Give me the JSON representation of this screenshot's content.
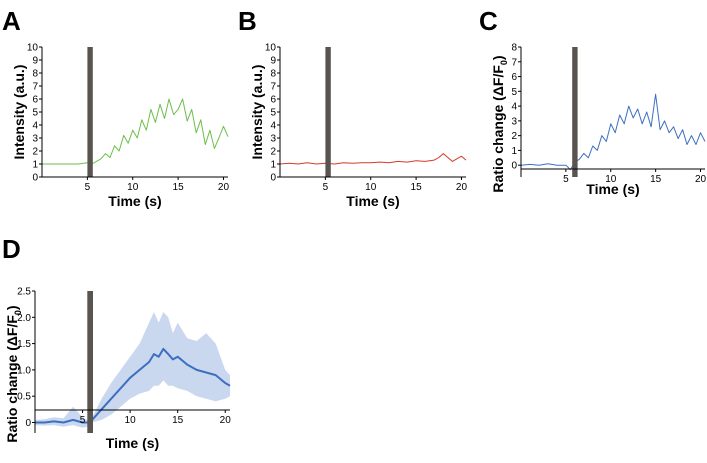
{
  "chart_data": [
    {
      "panel": "A",
      "type": "line",
      "xlabel": "Time (s)",
      "ylabel": "Intensity (a.u.)",
      "xlim": [
        0,
        20.5
      ],
      "ylim": [
        0,
        10
      ],
      "xticks": [
        5,
        10,
        15,
        20
      ],
      "yticks": [
        0,
        1,
        2,
        3,
        4,
        5,
        6,
        7,
        8,
        9,
        10
      ],
      "stimulus": [
        5,
        5.6
      ],
      "colors": {
        "line": "#6cbf4a",
        "stimulus": "#5a5450"
      },
      "series": [
        {
          "name": "trace",
          "x": [
            0,
            1,
            2,
            3,
            4,
            5,
            5.5,
            6,
            6.5,
            7,
            7.5,
            8,
            8.5,
            9,
            9.5,
            10,
            10.5,
            11,
            11.5,
            12,
            12.5,
            13,
            13.5,
            14,
            14.5,
            15,
            15.5,
            16,
            16.5,
            17,
            17.5,
            18,
            18.5,
            19,
            19.5,
            20,
            20.5
          ],
          "values": [
            1.0,
            1.0,
            1.0,
            1.0,
            1.0,
            1.1,
            1.0,
            1.2,
            1.4,
            1.8,
            1.5,
            2.4,
            2.0,
            3.2,
            2.6,
            3.6,
            3.0,
            4.4,
            3.6,
            5.2,
            4.2,
            5.6,
            4.5,
            6.0,
            4.8,
            5.2,
            6.0,
            4.3,
            5.2,
            3.4,
            4.4,
            2.5,
            3.6,
            2.2,
            3.0,
            3.9,
            3.1
          ]
        }
      ]
    },
    {
      "panel": "B",
      "type": "line",
      "xlabel": "Time (s)",
      "ylabel": "Intensity (a.u.)",
      "xlim": [
        0,
        20.5
      ],
      "ylim": [
        0,
        10
      ],
      "xticks": [
        5,
        10,
        15,
        20
      ],
      "yticks": [
        0,
        1,
        2,
        3,
        4,
        5,
        6,
        7,
        8,
        9,
        10
      ],
      "stimulus": [
        5,
        5.6
      ],
      "colors": {
        "line": "#d23b2a",
        "stimulus": "#5a5450"
      },
      "series": [
        {
          "name": "trace",
          "x": [
            0,
            1,
            2,
            3,
            4,
            5,
            6,
            7,
            8,
            9,
            10,
            11,
            12,
            13,
            14,
            15,
            16,
            17,
            17.5,
            18,
            18.5,
            19,
            19.5,
            20,
            20.5
          ],
          "values": [
            1.0,
            1.05,
            1.0,
            1.1,
            1.0,
            1.05,
            1.0,
            1.1,
            1.05,
            1.1,
            1.1,
            1.15,
            1.1,
            1.2,
            1.15,
            1.25,
            1.2,
            1.3,
            1.5,
            1.8,
            1.5,
            1.2,
            1.4,
            1.6,
            1.3
          ]
        }
      ]
    },
    {
      "panel": "C",
      "type": "line",
      "xlabel": "Time (s)",
      "ylabel": "Ratio change (ΔF/F",
      "ylabel_sub": "0",
      "ylabel_end": ")",
      "xlim": [
        0,
        20.5
      ],
      "ylim": [
        -0.8,
        8
      ],
      "xticks": [
        5,
        10,
        15,
        20
      ],
      "yticks": [
        0,
        1,
        2,
        3,
        4,
        5,
        6,
        7,
        8
      ],
      "stimulus": [
        5.7,
        6.3
      ],
      "colors": {
        "line": "#3d6fc0",
        "stimulus": "#5a5450"
      },
      "series": [
        {
          "name": "trace",
          "x": [
            0,
            1,
            2,
            3,
            4,
            5,
            5.5,
            6,
            6.5,
            7,
            7.5,
            8,
            8.5,
            9,
            9.5,
            10,
            10.5,
            11,
            11.5,
            12,
            12.5,
            13,
            13.5,
            14,
            14.5,
            15,
            15.5,
            16,
            16.5,
            17,
            17.5,
            18,
            18.5,
            19,
            19.5,
            20,
            20.5
          ],
          "values": [
            0.0,
            0.05,
            0.0,
            0.1,
            0.0,
            0.0,
            -0.3,
            0.2,
            0.4,
            0.8,
            0.5,
            1.3,
            1.0,
            2.0,
            1.6,
            2.8,
            2.2,
            3.4,
            2.8,
            4.0,
            3.2,
            3.8,
            2.8,
            3.6,
            2.6,
            4.8,
            2.4,
            3.0,
            2.2,
            2.6,
            1.8,
            2.4,
            1.4,
            2.0,
            1.4,
            2.2,
            1.6
          ]
        }
      ]
    },
    {
      "panel": "D",
      "type": "line",
      "xlabel": "Time (s)",
      "ylabel": "Ratio change (ΔF/F",
      "ylabel_sub": "0",
      "ylabel_end": ")",
      "xlim": [
        0,
        20.5
      ],
      "ylim": [
        -0.2,
        2.5
      ],
      "xticks": [
        5,
        10,
        15,
        20
      ],
      "yticks": [
        0,
        0.5,
        1.0,
        1.5,
        2.0,
        2.5
      ],
      "ytick_labels": [
        "0",
        "0.5",
        "1.0",
        "1.5",
        "2.0",
        "2.5"
      ],
      "stimulus": [
        5.5,
        6.1
      ],
      "colors": {
        "line": "#3d6fc0",
        "band": "#9fb8e2",
        "stimulus": "#5a5450"
      },
      "series": [
        {
          "name": "mean",
          "x": [
            0,
            1,
            2,
            3,
            4,
            5,
            5.5,
            6,
            7,
            8,
            9,
            10,
            11,
            12,
            12.5,
            13,
            13.5,
            14,
            14.5,
            15,
            16,
            17,
            18,
            19,
            20,
            20.5
          ],
          "values": [
            0.0,
            0.0,
            0.02,
            0.0,
            0.05,
            0.0,
            0.0,
            0.05,
            0.25,
            0.45,
            0.65,
            0.85,
            1.0,
            1.15,
            1.3,
            1.25,
            1.4,
            1.3,
            1.2,
            1.25,
            1.1,
            1.0,
            0.95,
            0.9,
            0.75,
            0.7
          ]
        },
        {
          "name": "upper",
          "x": [
            0,
            1,
            2,
            3,
            4,
            5,
            5.5,
            6,
            7,
            8,
            9,
            10,
            11,
            12,
            12.5,
            13,
            13.5,
            14,
            14.5,
            15,
            16,
            17,
            18,
            19,
            20,
            20.5
          ],
          "values": [
            0.05,
            0.06,
            0.1,
            0.08,
            0.3,
            0.1,
            0.05,
            0.1,
            0.45,
            0.75,
            1.0,
            1.25,
            1.5,
            1.9,
            2.1,
            1.9,
            2.1,
            2.0,
            1.7,
            1.9,
            1.6,
            1.55,
            1.7,
            1.5,
            1.0,
            0.9
          ]
        },
        {
          "name": "lower",
          "x": [
            0,
            1,
            2,
            3,
            4,
            5,
            5.5,
            6,
            7,
            8,
            9,
            10,
            11,
            12,
            12.5,
            13,
            13.5,
            14,
            14.5,
            15,
            16,
            17,
            18,
            19,
            20,
            20.5
          ],
          "values": [
            -0.05,
            -0.06,
            -0.05,
            -0.08,
            -0.05,
            -0.1,
            -0.08,
            0.0,
            0.05,
            0.15,
            0.3,
            0.45,
            0.55,
            0.6,
            0.7,
            0.7,
            0.8,
            0.7,
            0.7,
            0.65,
            0.6,
            0.5,
            0.45,
            0.4,
            0.45,
            0.5
          ]
        }
      ]
    }
  ]
}
